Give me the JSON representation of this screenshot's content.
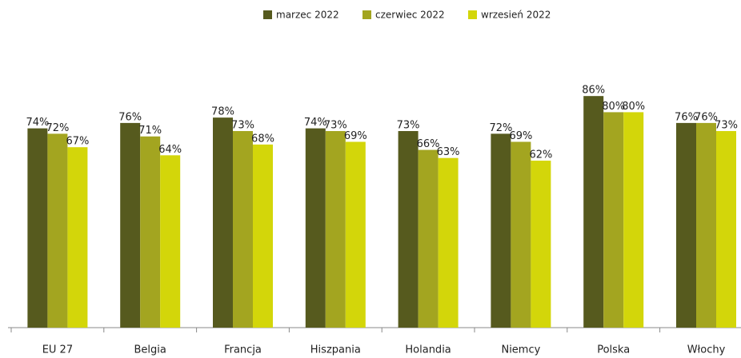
{
  "chart_data": {
    "type": "bar",
    "categories": [
      "EU 27",
      "Belgia",
      "Francja",
      "Hiszpania",
      "Holandia",
      "Niemcy",
      "Polska",
      "Włochy"
    ],
    "series": [
      {
        "name": "marzec 2022",
        "color": "#565a1e",
        "values": [
          74,
          76,
          78,
          74,
          73,
          72,
          86,
          76
        ],
        "value_labels": [
          "74%",
          "76%",
          "78%",
          "74%",
          "73%",
          "72%",
          "86%",
          "76%"
        ]
      },
      {
        "name": "czerwiec 2022",
        "color": "#a3a520",
        "values": [
          72,
          71,
          73,
          73,
          66,
          69,
          80,
          76
        ],
        "value_labels": [
          "72%",
          "71%",
          "73%",
          "73%",
          "66%",
          "69%",
          "80%",
          "76%"
        ]
      },
      {
        "name": "wrzesień 2022",
        "color": "#d3d60a",
        "values": [
          67,
          64,
          68,
          69,
          63,
          62,
          80,
          73
        ],
        "value_labels": [
          "67%",
          "64%",
          "68%",
          "69%",
          "63%",
          "62%",
          "80%",
          "73%"
        ]
      }
    ],
    "ylim": [
      0,
      100
    ],
    "legend": "top"
  }
}
